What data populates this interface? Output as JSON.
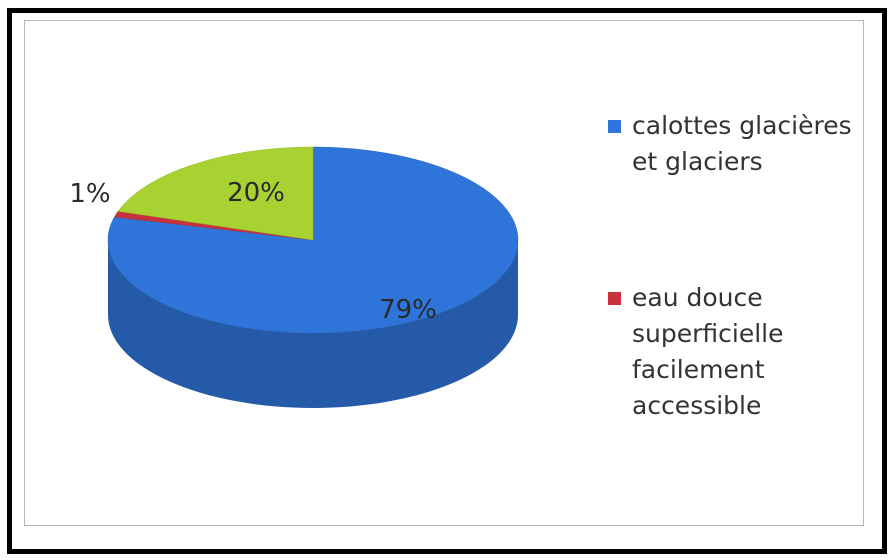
{
  "chart_data": {
    "type": "pie",
    "style": "3d",
    "title": "",
    "categories": [
      "calottes glacières\net glaciers",
      "eau douce\nsuperficielle\nfacilement\naccessible",
      ""
    ],
    "values": [
      79,
      1,
      20
    ],
    "data_labels": [
      "79%",
      "1%",
      "20%"
    ],
    "colors": [
      "#2f74d8",
      "#c8323c",
      "#a8d232"
    ],
    "legend": {
      "placement": "right",
      "entries": [
        {
          "label": "calottes glacières\net glaciers",
          "color": "#2f74d8"
        },
        {
          "label": "eau douce\nsuperficielle\nfacilement\naccessible",
          "color": "#c8323c"
        }
      ]
    }
  }
}
